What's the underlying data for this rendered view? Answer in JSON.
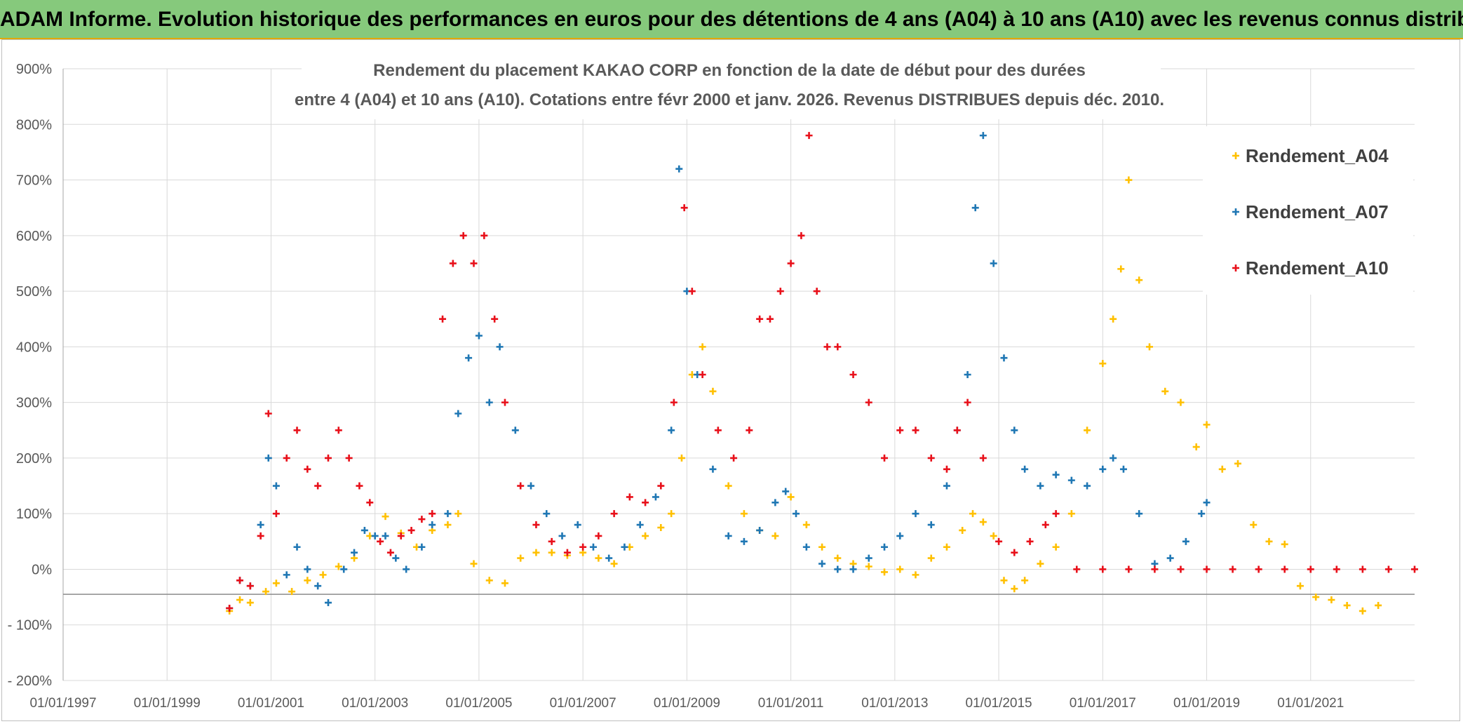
{
  "banner": {
    "title": "ADAM Informe. Evolution historique des performances en euros pour des détentions de 4 ans (A04) à 10 ans (A10) avec les revenus connus distribués"
  },
  "colors": {
    "banner_bg": "#86c97c",
    "banner_border": "#e0a800",
    "A04": "#ffc000",
    "A07": "#1f77b4",
    "A10": "#e8101a",
    "grid": "#d9d9d9",
    "axis_text": "#595959"
  },
  "chart_data": {
    "type": "scatter",
    "title_lines": [
      "Rendement du placement KAKAO CORP en fonction de la date de début pour des durées",
      "entre 4 (A04) et 10 ans (A10). Cotations entre févr 2000 et janv. 2026. Revenus DISTRIBUES depuis déc. 2010."
    ],
    "xlabel": "",
    "ylabel": "",
    "x_range": [
      "1997-01-01",
      "2023-01-01"
    ],
    "ylim": [
      -200,
      900
    ],
    "y_ticks": [
      -200,
      -100,
      0,
      100,
      200,
      300,
      400,
      500,
      600,
      700,
      800,
      900
    ],
    "y_tick_labels": [
      "- 200%",
      "- 100%",
      "0%",
      "100%",
      "200%",
      "300%",
      "400%",
      "500%",
      "600%",
      "700%",
      "800%",
      "900%"
    ],
    "x_tick_labels": [
      "01/01/1997",
      "01/01/1999",
      "01/01/2001",
      "01/01/2003",
      "01/01/2005",
      "01/01/2007",
      "01/01/2009",
      "01/01/2011",
      "01/01/2013",
      "01/01/2015",
      "01/01/2017",
      "01/01/2019",
      "01/01/2021"
    ],
    "legend_position": "right",
    "marker": "+",
    "series": [
      {
        "name": "Rendement_A04",
        "x": [
          2000.2,
          2000.4,
          2000.6,
          2000.9,
          2001.1,
          2001.4,
          2001.7,
          2002.0,
          2002.3,
          2002.6,
          2002.9,
          2003.2,
          2003.5,
          2003.8,
          2004.1,
          2004.4,
          2004.6,
          2004.9,
          2005.2,
          2005.5,
          2005.8,
          2006.1,
          2006.4,
          2006.7,
          2007.0,
          2007.3,
          2007.6,
          2007.9,
          2008.2,
          2008.5,
          2008.7,
          2008.9,
          2009.1,
          2009.3,
          2009.5,
          2009.8,
          2010.1,
          2010.4,
          2010.7,
          2011.0,
          2011.3,
          2011.6,
          2011.9,
          2012.2,
          2012.5,
          2012.8,
          2013.1,
          2013.4,
          2013.7,
          2014.0,
          2014.3,
          2014.5,
          2014.7,
          2014.9,
          2015.1,
          2015.3,
          2015.5,
          2015.8,
          2016.1,
          2016.4,
          2016.7,
          2017.0,
          2017.2,
          2017.35,
          2017.5,
          2017.7,
          2017.9,
          2018.2,
          2018.5,
          2018.8,
          2019.0,
          2019.3,
          2019.6,
          2019.9,
          2020.2,
          2020.5,
          2020.8,
          2021.1,
          2021.4,
          2021.7,
          2022.0,
          2022.3
        ],
        "y": [
          -75,
          -55,
          -60,
          -40,
          -25,
          -40,
          -20,
          -10,
          5,
          20,
          60,
          95,
          65,
          40,
          70,
          80,
          100,
          10,
          -20,
          -25,
          20,
          30,
          30,
          25,
          30,
          20,
          10,
          40,
          60,
          75,
          100,
          200,
          350,
          400,
          320,
          150,
          100,
          70,
          60,
          130,
          80,
          40,
          20,
          10,
          5,
          -5,
          0,
          -10,
          20,
          40,
          70,
          100,
          85,
          60,
          -20,
          -35,
          -20,
          10,
          40,
          100,
          250,
          370,
          450,
          540,
          700,
          520,
          400,
          320,
          300,
          220,
          260,
          180,
          190,
          80,
          50,
          45,
          -30,
          -50,
          -55,
          -65,
          -75,
          -65
        ]
      },
      {
        "name": "Rendement_A07",
        "x": [
          2000.2,
          2000.4,
          2000.6,
          2000.8,
          2000.95,
          2001.1,
          2001.3,
          2001.5,
          2001.7,
          2001.9,
          2002.1,
          2002.4,
          2002.6,
          2002.8,
          2003.0,
          2003.2,
          2003.4,
          2003.6,
          2003.9,
          2004.1,
          2004.4,
          2004.6,
          2004.8,
          2005.0,
          2005.2,
          2005.4,
          2005.7,
          2006.0,
          2006.3,
          2006.6,
          2006.9,
          2007.2,
          2007.5,
          2007.8,
          2008.1,
          2008.4,
          2008.7,
          2008.85,
          2009.0,
          2009.2,
          2009.5,
          2009.8,
          2010.1,
          2010.4,
          2010.7,
          2010.9,
          2011.1,
          2011.3,
          2011.6,
          2011.9,
          2012.2,
          2012.5,
          2012.8,
          2013.1,
          2013.4,
          2013.7,
          2014.0,
          2014.2,
          2014.4,
          2014.55,
          2014.7,
          2014.9,
          2015.1,
          2015.3,
          2015.5,
          2015.8,
          2016.1,
          2016.4,
          2016.7,
          2017.0,
          2017.2,
          2017.4,
          2017.7,
          2018.0,
          2018.3,
          2018.6,
          2018.9,
          2019.0
        ],
        "y": [
          -70,
          -20,
          -30,
          80,
          200,
          150,
          -10,
          40,
          0,
          -30,
          -60,
          0,
          30,
          70,
          60,
          60,
          20,
          0,
          40,
          80,
          100,
          280,
          380,
          420,
          300,
          400,
          250,
          150,
          100,
          60,
          80,
          40,
          20,
          40,
          80,
          130,
          250,
          720,
          500,
          350,
          180,
          60,
          50,
          70,
          120,
          140,
          100,
          40,
          10,
          0,
          0,
          20,
          40,
          60,
          100,
          80,
          150,
          250,
          350,
          650,
          780,
          550,
          380,
          250,
          180,
          150,
          170,
          160,
          150,
          180,
          200,
          180,
          100,
          10,
          20,
          50,
          100,
          120
        ]
      },
      {
        "name": "Rendement_A10",
        "x": [
          2000.2,
          2000.4,
          2000.6,
          2000.8,
          2000.95,
          2001.1,
          2001.3,
          2001.5,
          2001.7,
          2001.9,
          2002.1,
          2002.3,
          2002.5,
          2002.7,
          2002.9,
          2003.1,
          2003.3,
          2003.5,
          2003.7,
          2003.9,
          2004.1,
          2004.3,
          2004.5,
          2004.7,
          2004.9,
          2005.1,
          2005.3,
          2005.5,
          2005.8,
          2006.1,
          2006.4,
          2006.7,
          2007.0,
          2007.3,
          2007.6,
          2007.9,
          2008.2,
          2008.5,
          2008.75,
          2008.95,
          2009.1,
          2009.3,
          2009.6,
          2009.9,
          2010.2,
          2010.4,
          2010.6,
          2010.8,
          2011.0,
          2011.2,
          2011.35,
          2011.5,
          2011.7,
          2011.9,
          2012.2,
          2012.5,
          2012.8,
          2013.1,
          2013.4,
          2013.7,
          2014.0,
          2014.2,
          2014.4,
          2014.7,
          2015.0,
          2015.3,
          2015.6,
          2015.9,
          2016.1,
          2016.5,
          2017.0,
          2017.5,
          2018.0,
          2018.5,
          2019.0,
          2019.5,
          2020.0,
          2020.5,
          2021.0,
          2021.5,
          2022.0,
          2022.5,
          2023.0
        ],
        "y": [
          -70,
          -20,
          -30,
          60,
          280,
          100,
          200,
          250,
          180,
          150,
          200,
          250,
          200,
          150,
          120,
          50,
          30,
          60,
          70,
          90,
          100,
          450,
          550,
          600,
          550,
          600,
          450,
          300,
          150,
          80,
          50,
          30,
          40,
          60,
          100,
          130,
          120,
          150,
          300,
          650,
          500,
          350,
          250,
          200,
          250,
          450,
          450,
          500,
          550,
          600,
          780,
          500,
          400,
          400,
          350,
          300,
          200,
          250,
          250,
          200,
          180,
          250,
          300,
          200,
          50,
          30,
          50,
          80,
          100,
          0,
          0,
          0,
          0,
          0,
          0,
          0,
          0,
          0,
          0,
          0,
          0,
          0,
          0
        ]
      }
    ]
  }
}
